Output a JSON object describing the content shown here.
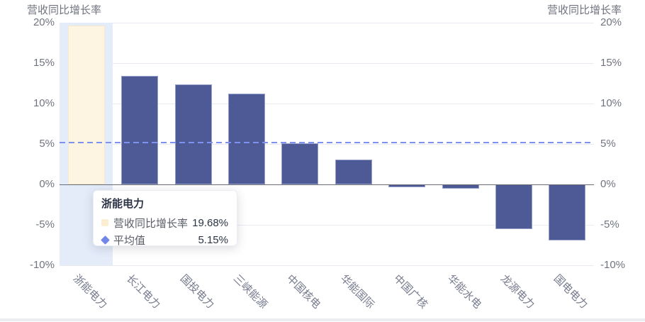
{
  "axis": {
    "left_name": "营收同比增长率",
    "right_name": "营收同比增长率",
    "tick_labels": [
      "20%",
      "15%",
      "10%",
      "5%",
      "0%",
      "-5%",
      "-10%"
    ],
    "tick_values": [
      20,
      15,
      10,
      5,
      0,
      -5,
      -10
    ]
  },
  "chart_data": {
    "type": "bar",
    "title": "",
    "xlabel": "",
    "ylabel": "营收同比增长率",
    "ylim": [
      -10,
      20
    ],
    "y_tick_step": 5,
    "grid": "horizontal",
    "legend_position": "none",
    "categories": [
      "浙能电力",
      "长江电力",
      "国投电力",
      "三峡能源",
      "中国核电",
      "华能国际",
      "中国广核",
      "华能水电",
      "龙源电力",
      "国电电力"
    ],
    "series": [
      {
        "name": "营收同比增长率",
        "type": "bar",
        "values": [
          19.68,
          13.45,
          12.35,
          11.25,
          5.1,
          3.05,
          -0.35,
          -0.55,
          -5.55,
          -6.95
        ]
      },
      {
        "name": "平均值",
        "type": "dashed-reference-line",
        "value": 5.15
      }
    ],
    "average": 5.15,
    "highlight_index": 0,
    "highlighted_category": "浙能电力",
    "colors": {
      "bar": "#4d5a96",
      "bar_border": "#98a1cb",
      "highlight_bar": "#fdf4e2",
      "highlight_bar_border": "#f5e8cc",
      "hover_band": "#e4ecfa",
      "average_line": "#7e91ee",
      "grid_line": "#e9ebf3",
      "zero_line": "#6a6d75",
      "axis_text": "#71747f",
      "x_label_text": "#777b8e"
    }
  },
  "tooltip": {
    "title": "浙能电力",
    "rows": [
      {
        "marker": "square",
        "marker_color": "#fbeed1",
        "label": "营收同比增长率",
        "value": "19.68%"
      },
      {
        "marker": "diamond",
        "marker_color": "#7286e8",
        "label": "平均值",
        "value": "5.15%"
      }
    ]
  }
}
